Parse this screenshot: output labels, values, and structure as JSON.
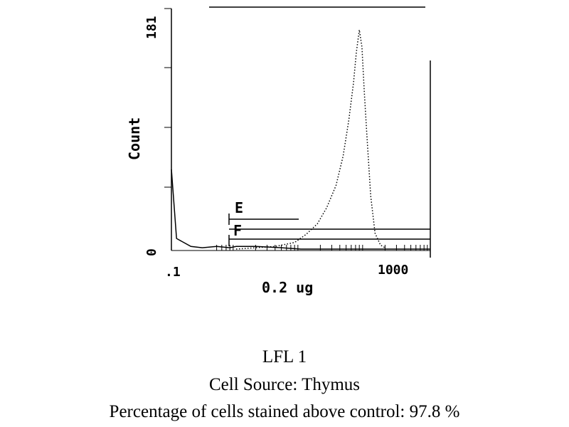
{
  "chart_data": {
    "type": "line",
    "title": "",
    "xlabel": "0.2 ug",
    "ylabel": "Count",
    "x_scale": "log",
    "xlim": [
      0.1,
      1000
    ],
    "ylim": [
      0,
      181
    ],
    "x_tick_labels": [
      ".1",
      "1000"
    ],
    "y_tick_labels": [
      "0",
      "181"
    ],
    "marker_labels": [
      "E",
      "F"
    ],
    "series": [
      {
        "style": "dotted",
        "x": [
          1,
          2,
          4,
          8,
          12,
          18,
          25,
          35,
          45,
          55,
          65,
          72,
          80,
          88,
          95,
          105,
          120,
          140,
          170,
          200
        ],
        "y": [
          0,
          1,
          2,
          5,
          11,
          19,
          31,
          48,
          70,
          97,
          125,
          148,
          165,
          152,
          120,
          85,
          40,
          12,
          3,
          1
        ]
      },
      {
        "style": "solid",
        "x": [
          0.1,
          0.12,
          0.2,
          0.3,
          0.5,
          0.8,
          1,
          2,
          5,
          10,
          100,
          1000
        ],
        "y": [
          60,
          8,
          2,
          1,
          2,
          1,
          2,
          2,
          1,
          0,
          0,
          0
        ]
      }
    ]
  },
  "captions": {
    "line1": "LFL 1",
    "line2": "Cell Source:  Thymus",
    "line3": "Percentage of cells stained above control:  97.8 %"
  }
}
